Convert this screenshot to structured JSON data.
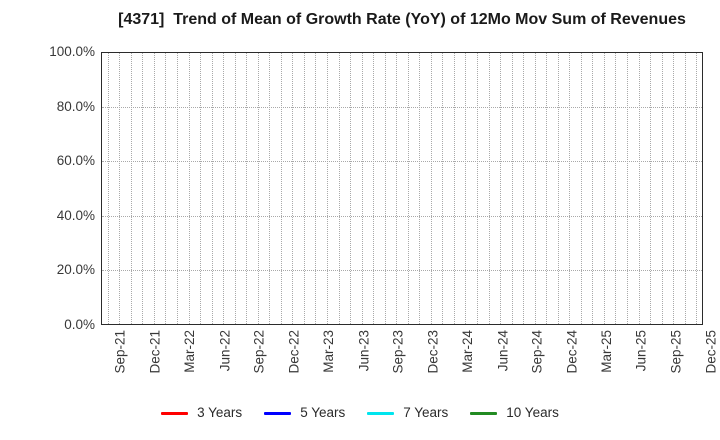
{
  "chart_data": {
    "type": "line",
    "title": "[4371]  Trend of Mean of Growth Rate (YoY) of 12Mo Mov Sum of Revenues",
    "xlabel": "",
    "ylabel": "",
    "ylim": [
      0,
      100
    ],
    "grid": true,
    "legend_position": "bottom",
    "y_ticks": [
      {
        "value": 0,
        "label": "0.0%"
      },
      {
        "value": 20,
        "label": "20.0%"
      },
      {
        "value": 40,
        "label": "40.0%"
      },
      {
        "value": 60,
        "label": "60.0%"
      },
      {
        "value": 80,
        "label": "80.0%"
      },
      {
        "value": 100,
        "label": "100.0%"
      }
    ],
    "x_tick_labels": [
      "Sep-21",
      "Dec-21",
      "Mar-22",
      "Jun-22",
      "Sep-22",
      "Dec-22",
      "Mar-23",
      "Jun-23",
      "Sep-23",
      "Dec-23",
      "Mar-24",
      "Jun-24",
      "Sep-24",
      "Dec-24",
      "Mar-25",
      "Jun-25",
      "Sep-25",
      "Dec-25"
    ],
    "x_label_step_months": 3,
    "months_span": 52,
    "series": [
      {
        "name": "3 Years",
        "color": "#FF0000",
        "values": []
      },
      {
        "name": "5 Years",
        "color": "#0000FF",
        "values": []
      },
      {
        "name": "7 Years",
        "color": "#00E5EE",
        "values": []
      },
      {
        "name": "10 Years",
        "color": "#228B22",
        "values": []
      }
    ]
  },
  "colors": {
    "grid": "#a9a9a9",
    "axis_border": "#2b2b2b",
    "tick_text": "#383838",
    "title_text": "#1a1a1a"
  }
}
